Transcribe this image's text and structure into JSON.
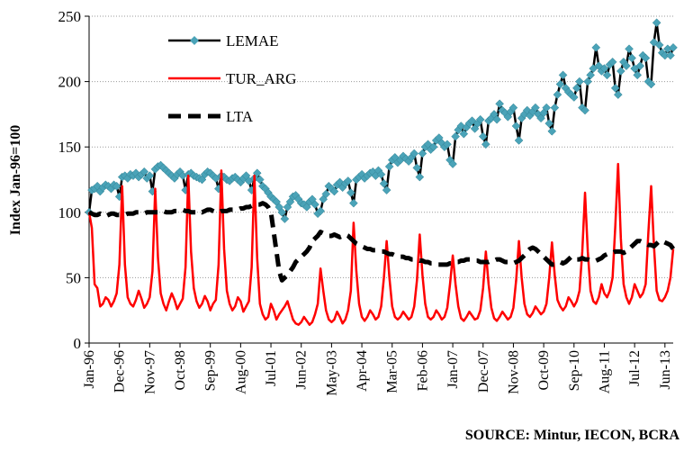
{
  "chart_data": {
    "type": "line",
    "y_label": "Index Jan-96=100",
    "source": "SOURCE: Mintur, IECON, BCRA",
    "categories": [
      "Jan-96",
      null,
      null,
      null,
      null,
      null,
      null,
      null,
      null,
      null,
      null,
      "Dec-96",
      null,
      null,
      null,
      null,
      null,
      null,
      null,
      null,
      null,
      null,
      "Nov-97",
      null,
      null,
      null,
      null,
      null,
      null,
      null,
      null,
      null,
      null,
      "Oct-98",
      null,
      null,
      null,
      null,
      null,
      null,
      null,
      null,
      null,
      null,
      "Sep-99",
      null,
      null,
      null,
      null,
      null,
      null,
      null,
      null,
      null,
      null,
      "Aug-00",
      null,
      null,
      null,
      null,
      null,
      null,
      null,
      null,
      null,
      null,
      "Jul-01",
      null,
      null,
      null,
      null,
      null,
      null,
      null,
      null,
      null,
      null,
      "Jun-02",
      null,
      null,
      null,
      null,
      null,
      null,
      null,
      null,
      null,
      null,
      "May-03",
      null,
      null,
      null,
      null,
      null,
      null,
      null,
      null,
      null,
      null,
      "Apr-04",
      null,
      null,
      null,
      null,
      null,
      null,
      null,
      null,
      null,
      null,
      "Mar-05",
      null,
      null,
      null,
      null,
      null,
      null,
      null,
      null,
      null,
      null,
      "Feb-06",
      null,
      null,
      null,
      null,
      null,
      null,
      null,
      null,
      null,
      null,
      "Jan-07",
      null,
      null,
      null,
      null,
      null,
      null,
      null,
      null,
      null,
      null,
      "Dec-07",
      null,
      null,
      null,
      null,
      null,
      null,
      null,
      null,
      null,
      null,
      "Nov-08",
      null,
      null,
      null,
      null,
      null,
      null,
      null,
      null,
      null,
      null,
      "Oct-09",
      null,
      null,
      null,
      null,
      null,
      null,
      null,
      null,
      null,
      null,
      "Sep-10",
      null,
      null,
      null,
      null,
      null,
      null,
      null,
      null,
      null,
      null,
      "Aug-11",
      null,
      null,
      null,
      null,
      null,
      null,
      null,
      null,
      null,
      null,
      "Jul-12",
      null,
      null,
      null,
      null,
      null,
      null,
      null,
      null,
      null,
      null,
      "Jun-13",
      null,
      null,
      null
    ],
    "series": [
      {
        "name": "LEMAE",
        "color": "#000000",
        "marker": "diamond",
        "marker_color": "#4aa3b8",
        "style": "solid",
        "values": [
          100,
          117,
          118,
          120,
          116,
          119,
          121,
          120,
          118,
          121,
          120,
          112,
          127,
          128,
          126,
          129,
          128,
          130,
          127,
          129,
          131,
          126,
          128,
          116,
          133,
          135,
          136,
          134,
          132,
          130,
          128,
          126,
          129,
          131,
          128,
          117,
          129,
          130,
          128,
          127,
          126,
          125,
          129,
          131,
          130,
          128,
          126,
          118,
          128,
          127,
          125,
          124,
          126,
          127,
          125,
          123,
          126,
          128,
          124,
          117,
          126,
          130,
          125,
          120,
          118,
          115,
          112,
          110,
          108,
          104,
          100,
          95,
          104,
          108,
          112,
          113,
          110,
          107,
          106,
          104,
          108,
          110,
          106,
          99,
          101,
          110,
          114,
          120,
          118,
          116,
          121,
          123,
          119,
          122,
          124,
          115,
          107,
          125,
          127,
          129,
          126,
          128,
          130,
          131,
          128,
          132,
          129,
          122,
          117,
          135,
          140,
          142,
          138,
          140,
          143,
          141,
          139,
          142,
          145,
          134,
          127,
          145,
          150,
          152,
          148,
          150,
          155,
          157,
          153,
          150,
          152,
          140,
          137,
          158,
          163,
          166,
          160,
          165,
          168,
          170,
          164,
          168,
          171,
          158,
          152,
          170,
          172,
          175,
          171,
          183,
          178,
          176,
          173,
          177,
          180,
          166,
          155,
          172,
          175,
          178,
          174,
          177,
          180,
          175,
          172,
          176,
          180,
          168,
          162,
          180,
          190,
          198,
          205,
          195,
          192,
          190,
          188,
          195,
          200,
          180,
          178,
          200,
          205,
          210,
          226,
          212,
          208,
          210,
          205,
          213,
          215,
          195,
          190,
          208,
          215,
          212,
          225,
          218,
          210,
          205,
          212,
          220,
          218,
          200,
          198,
          230,
          245,
          228,
          222,
          220,
          225,
          220,
          226
        ]
      },
      {
        "name": "TUR_ARG",
        "color": "#ff0000",
        "style": "solid",
        "values": [
          100,
          88,
          45,
          42,
          28,
          30,
          35,
          33,
          28,
          32,
          38,
          60,
          120,
          60,
          35,
          30,
          28,
          33,
          40,
          34,
          27,
          30,
          35,
          55,
          118,
          65,
          38,
          30,
          25,
          32,
          38,
          33,
          26,
          30,
          34,
          58,
          128,
          70,
          42,
          32,
          27,
          30,
          36,
          32,
          25,
          30,
          33,
          60,
          132,
          72,
          40,
          30,
          25,
          28,
          35,
          32,
          24,
          28,
          32,
          58,
          128,
          65,
          30,
          22,
          18,
          20,
          30,
          25,
          18,
          22,
          25,
          28,
          32,
          25,
          18,
          15,
          14,
          16,
          20,
          17,
          14,
          16,
          22,
          30,
          57,
          40,
          25,
          18,
          16,
          18,
          24,
          20,
          15,
          18,
          25,
          40,
          92,
          55,
          30,
          20,
          17,
          20,
          25,
          22,
          18,
          20,
          28,
          50,
          78,
          50,
          28,
          20,
          18,
          20,
          24,
          21,
          18,
          20,
          28,
          48,
          83,
          52,
          30,
          20,
          18,
          20,
          25,
          22,
          18,
          20,
          27,
          45,
          67,
          45,
          28,
          19,
          17,
          20,
          24,
          21,
          18,
          19,
          25,
          42,
          70,
          45,
          27,
          19,
          17,
          20,
          24,
          21,
          18,
          20,
          27,
          48,
          78,
          50,
          30,
          22,
          20,
          23,
          28,
          25,
          22,
          24,
          30,
          50,
          77,
          52,
          33,
          28,
          25,
          28,
          35,
          32,
          28,
          32,
          40,
          70,
          115,
          70,
          40,
          32,
          30,
          35,
          45,
          38,
          35,
          40,
          50,
          90,
          137,
          80,
          45,
          35,
          30,
          35,
          45,
          40,
          35,
          38,
          45,
          85,
          120,
          75,
          40,
          33,
          32,
          35,
          40,
          50,
          72
        ]
      },
      {
        "name": "LTA",
        "color": "#000000",
        "style": "dashed",
        "values": [
          100,
          99,
          98,
          98,
          99,
          98,
          97,
          98,
          99,
          99,
          98,
          98,
          98,
          98,
          99,
          99,
          99,
          100,
          100,
          99,
          99,
          100,
          100,
          100,
          100,
          100,
          101,
          101,
          100,
          100,
          100,
          101,
          101,
          102,
          102,
          101,
          101,
          100,
          100,
          100,
          101,
          100,
          101,
          102,
          102,
          101,
          100,
          100,
          101,
          101,
          101,
          102,
          102,
          102,
          102,
          103,
          103,
          104,
          104,
          105,
          105,
          106,
          106,
          107,
          106,
          104,
          100,
          85,
          70,
          55,
          48,
          50,
          52,
          55,
          58,
          62,
          64,
          66,
          68,
          70,
          73,
          78,
          80,
          82,
          85,
          84,
          83,
          82,
          82,
          83,
          82,
          81,
          82,
          83,
          82,
          80,
          78,
          76,
          75,
          74,
          73,
          72,
          72,
          71,
          71,
          70,
          70,
          70,
          69,
          68,
          68,
          67,
          67,
          66,
          66,
          65,
          65,
          64,
          64,
          64,
          63,
          63,
          62,
          62,
          61,
          61,
          60,
          60,
          60,
          60,
          60,
          61,
          61,
          62,
          62,
          63,
          63,
          64,
          64,
          64,
          63,
          63,
          62,
          62,
          62,
          62,
          63,
          63,
          64,
          64,
          63,
          62,
          62,
          61,
          61,
          62,
          63,
          65,
          67,
          70,
          72,
          73,
          72,
          70,
          68,
          66,
          64,
          62,
          60,
          60,
          61,
          62,
          61,
          62,
          64,
          66,
          65,
          64,
          64,
          65,
          64,
          64,
          63,
          63,
          63,
          64,
          65,
          67,
          68,
          69,
          69,
          70,
          70,
          70,
          69,
          70,
          72,
          74,
          76,
          78,
          78,
          77,
          76,
          75,
          75,
          74,
          76,
          78,
          78,
          77,
          76,
          75,
          72
        ]
      }
    ],
    "ylim": [
      0,
      250
    ],
    "yticks": [
      0,
      50,
      100,
      150,
      200,
      250
    ],
    "grid": true,
    "legend": "upper left"
  }
}
